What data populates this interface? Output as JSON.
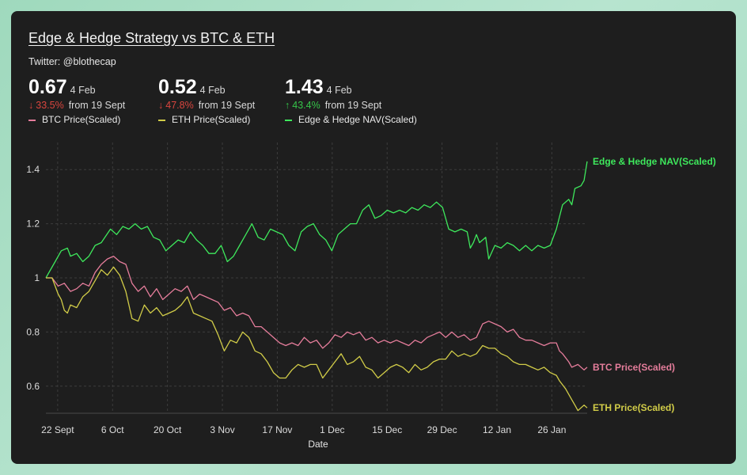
{
  "header": {
    "title": "Edge & Hedge Strategy vs BTC & ETH",
    "subtitle": "Twitter: @blothecap"
  },
  "stats": [
    {
      "value": "0.67",
      "date": "4 Feb",
      "direction": "down",
      "change": "33.5%",
      "from": "from 19 Sept",
      "legend": "BTC Price(Scaled)",
      "color": "#e57d9b"
    },
    {
      "value": "0.52",
      "date": "4 Feb",
      "direction": "down",
      "change": "47.8%",
      "from": "from 19 Sept",
      "legend": "ETH Price(Scaled)",
      "color": "#d1cc48"
    },
    {
      "value": "1.43",
      "date": "4 Feb",
      "direction": "up",
      "change": "43.4%",
      "from": "from 19 Sept",
      "legend": "Edge & Hedge NAV(Scaled)",
      "color": "#3ee85c"
    }
  ],
  "icons": {
    "down": "arrow-down-icon",
    "up": "arrow-up-icon"
  },
  "chart_data": {
    "type": "line",
    "title": "Edge & Hedge Strategy vs BTC & ETH",
    "xlabel": "Date",
    "ylabel": "",
    "x_ticks": [
      "22 Sept",
      "6 Oct",
      "20 Oct",
      "3 Nov",
      "17 Nov",
      "1 Dec",
      "15 Dec",
      "29 Dec",
      "12 Jan",
      "26 Jan"
    ],
    "x_tick_day_index": [
      3,
      17,
      31,
      45,
      59,
      73,
      87,
      101,
      115,
      129
    ],
    "x_range": [
      0,
      138
    ],
    "y_ticks": [
      0.6,
      0.8,
      1,
      1.2,
      1.4
    ],
    "ylim": [
      0.5,
      1.5
    ],
    "grid": true,
    "x_start_date": "19 Sept",
    "x_end_date": "4 Feb",
    "series": [
      {
        "name": "Edge & Hedge NAV(Scaled)",
        "color": "#3ee85c",
        "end_label": "Edge & Hedge NAV(Scaled)",
        "anchors": [
          [
            0,
            1.0
          ],
          [
            3,
            1.06
          ],
          [
            5,
            1.1
          ],
          [
            7,
            1.11
          ],
          [
            8,
            1.08
          ],
          [
            10,
            1.09
          ],
          [
            12,
            1.06
          ],
          [
            14,
            1.08
          ],
          [
            16,
            1.12
          ],
          [
            18,
            1.13
          ],
          [
            21,
            1.18
          ],
          [
            23,
            1.16
          ],
          [
            25,
            1.19
          ],
          [
            27,
            1.18
          ],
          [
            29,
            1.2
          ],
          [
            31,
            1.18
          ],
          [
            33,
            1.19
          ],
          [
            35,
            1.15
          ],
          [
            37,
            1.14
          ],
          [
            39,
            1.1
          ],
          [
            41,
            1.12
          ],
          [
            43,
            1.14
          ],
          [
            45,
            1.13
          ],
          [
            47,
            1.17
          ],
          [
            49,
            1.14
          ],
          [
            51,
            1.12
          ],
          [
            53,
            1.09
          ],
          [
            55,
            1.09
          ],
          [
            57,
            1.12
          ],
          [
            59,
            1.06
          ],
          [
            61,
            1.08
          ],
          [
            63,
            1.12
          ],
          [
            65,
            1.16
          ],
          [
            67,
            1.2
          ],
          [
            69,
            1.15
          ],
          [
            71,
            1.14
          ],
          [
            73,
            1.18
          ],
          [
            75,
            1.17
          ],
          [
            77,
            1.16
          ],
          [
            79,
            1.12
          ],
          [
            81,
            1.1
          ],
          [
            83,
            1.17
          ],
          [
            85,
            1.19
          ],
          [
            87,
            1.2
          ],
          [
            89,
            1.16
          ],
          [
            91,
            1.14
          ],
          [
            93,
            1.1
          ],
          [
            95,
            1.16
          ],
          [
            97,
            1.18
          ],
          [
            99,
            1.2
          ],
          [
            101,
            1.2
          ],
          [
            103,
            1.25
          ],
          [
            105,
            1.27
          ],
          [
            107,
            1.22
          ],
          [
            109,
            1.23
          ],
          [
            111,
            1.25
          ],
          [
            113,
            1.24
          ],
          [
            115,
            1.25
          ],
          [
            117,
            1.24
          ],
          [
            119,
            1.26
          ],
          [
            121,
            1.25
          ],
          [
            123,
            1.27
          ],
          [
            125,
            1.26
          ],
          [
            127,
            1.28
          ],
          [
            129,
            1.26
          ],
          [
            131,
            1.18
          ],
          [
            133,
            1.17
          ],
          [
            135,
            1.18
          ],
          [
            137,
            1.17
          ],
          [
            138,
            1.11
          ],
          [
            139,
            1.13
          ],
          [
            140,
            1.16
          ],
          [
            141,
            1.13
          ],
          [
            143,
            1.15
          ],
          [
            144,
            1.07
          ],
          [
            146,
            1.12
          ],
          [
            148,
            1.11
          ],
          [
            150,
            1.13
          ],
          [
            152,
            1.12
          ],
          [
            154,
            1.1
          ],
          [
            156,
            1.12
          ],
          [
            158,
            1.1
          ],
          [
            160,
            1.12
          ],
          [
            162,
            1.11
          ],
          [
            164,
            1.12
          ],
          [
            166,
            1.18
          ],
          [
            168,
            1.27
          ],
          [
            170,
            1.29
          ],
          [
            171,
            1.27
          ],
          [
            172,
            1.33
          ],
          [
            174,
            1.34
          ],
          [
            175,
            1.36
          ],
          [
            176,
            1.43
          ]
        ]
      },
      {
        "name": "BTC Price(Scaled)",
        "color": "#e57d9b",
        "end_label": "BTC Price(Scaled)",
        "anchors": [
          [
            0,
            1.0
          ],
          [
            2,
            1.0
          ],
          [
            4,
            0.97
          ],
          [
            6,
            0.98
          ],
          [
            8,
            0.95
          ],
          [
            10,
            0.96
          ],
          [
            12,
            0.98
          ],
          [
            14,
            0.97
          ],
          [
            16,
            1.02
          ],
          [
            18,
            1.05
          ],
          [
            20,
            1.07
          ],
          [
            22,
            1.08
          ],
          [
            24,
            1.06
          ],
          [
            26,
            1.05
          ],
          [
            28,
            0.98
          ],
          [
            30,
            0.95
          ],
          [
            32,
            0.97
          ],
          [
            34,
            0.93
          ],
          [
            36,
            0.96
          ],
          [
            38,
            0.92
          ],
          [
            40,
            0.94
          ],
          [
            42,
            0.96
          ],
          [
            44,
            0.95
          ],
          [
            46,
            0.97
          ],
          [
            48,
            0.92
          ],
          [
            50,
            0.94
          ],
          [
            52,
            0.93
          ],
          [
            54,
            0.92
          ],
          [
            56,
            0.91
          ],
          [
            58,
            0.88
          ],
          [
            60,
            0.89
          ],
          [
            62,
            0.86
          ],
          [
            64,
            0.87
          ],
          [
            66,
            0.86
          ],
          [
            68,
            0.82
          ],
          [
            70,
            0.82
          ],
          [
            72,
            0.8
          ],
          [
            74,
            0.78
          ],
          [
            76,
            0.76
          ],
          [
            78,
            0.75
          ],
          [
            80,
            0.76
          ],
          [
            82,
            0.75
          ],
          [
            84,
            0.78
          ],
          [
            86,
            0.76
          ],
          [
            88,
            0.77
          ],
          [
            90,
            0.74
          ],
          [
            92,
            0.76
          ],
          [
            94,
            0.79
          ],
          [
            96,
            0.78
          ],
          [
            98,
            0.8
          ],
          [
            100,
            0.79
          ],
          [
            102,
            0.8
          ],
          [
            104,
            0.77
          ],
          [
            106,
            0.78
          ],
          [
            108,
            0.76
          ],
          [
            110,
            0.77
          ],
          [
            112,
            0.76
          ],
          [
            114,
            0.77
          ],
          [
            116,
            0.76
          ],
          [
            118,
            0.75
          ],
          [
            120,
            0.77
          ],
          [
            122,
            0.76
          ],
          [
            124,
            0.78
          ],
          [
            126,
            0.79
          ],
          [
            128,
            0.8
          ],
          [
            130,
            0.78
          ],
          [
            132,
            0.8
          ],
          [
            134,
            0.78
          ],
          [
            136,
            0.79
          ],
          [
            138,
            0.77
          ],
          [
            140,
            0.78
          ],
          [
            142,
            0.83
          ],
          [
            144,
            0.84
          ],
          [
            146,
            0.83
          ],
          [
            148,
            0.82
          ],
          [
            150,
            0.8
          ],
          [
            152,
            0.81
          ],
          [
            154,
            0.78
          ],
          [
            156,
            0.77
          ],
          [
            158,
            0.77
          ],
          [
            160,
            0.76
          ],
          [
            162,
            0.75
          ],
          [
            164,
            0.76
          ],
          [
            166,
            0.76
          ],
          [
            167,
            0.73
          ],
          [
            168,
            0.72
          ],
          [
            170,
            0.69
          ],
          [
            171,
            0.67
          ],
          [
            173,
            0.68
          ],
          [
            175,
            0.66
          ],
          [
            176,
            0.67
          ]
        ]
      },
      {
        "name": "ETH Price(Scaled)",
        "color": "#d1cc48",
        "end_label": "ETH Price(Scaled)",
        "anchors": [
          [
            0,
            1.0
          ],
          [
            2,
            1.0
          ],
          [
            4,
            0.94
          ],
          [
            5,
            0.92
          ],
          [
            6,
            0.88
          ],
          [
            7,
            0.87
          ],
          [
            8,
            0.9
          ],
          [
            10,
            0.89
          ],
          [
            12,
            0.93
          ],
          [
            14,
            0.95
          ],
          [
            16,
            0.99
          ],
          [
            18,
            1.03
          ],
          [
            20,
            1.01
          ],
          [
            22,
            1.04
          ],
          [
            24,
            1.01
          ],
          [
            26,
            0.95
          ],
          [
            28,
            0.85
          ],
          [
            30,
            0.84
          ],
          [
            32,
            0.9
          ],
          [
            34,
            0.87
          ],
          [
            36,
            0.89
          ],
          [
            38,
            0.86
          ],
          [
            40,
            0.87
          ],
          [
            42,
            0.88
          ],
          [
            44,
            0.9
          ],
          [
            46,
            0.93
          ],
          [
            48,
            0.87
          ],
          [
            50,
            0.86
          ],
          [
            52,
            0.85
          ],
          [
            54,
            0.84
          ],
          [
            56,
            0.79
          ],
          [
            58,
            0.73
          ],
          [
            60,
            0.77
          ],
          [
            62,
            0.76
          ],
          [
            64,
            0.8
          ],
          [
            66,
            0.78
          ],
          [
            68,
            0.73
          ],
          [
            70,
            0.72
          ],
          [
            72,
            0.69
          ],
          [
            74,
            0.65
          ],
          [
            76,
            0.63
          ],
          [
            78,
            0.63
          ],
          [
            80,
            0.66
          ],
          [
            82,
            0.68
          ],
          [
            84,
            0.67
          ],
          [
            86,
            0.68
          ],
          [
            88,
            0.68
          ],
          [
            90,
            0.63
          ],
          [
            92,
            0.66
          ],
          [
            94,
            0.69
          ],
          [
            96,
            0.72
          ],
          [
            98,
            0.68
          ],
          [
            100,
            0.69
          ],
          [
            102,
            0.71
          ],
          [
            104,
            0.67
          ],
          [
            106,
            0.66
          ],
          [
            108,
            0.63
          ],
          [
            110,
            0.65
          ],
          [
            112,
            0.67
          ],
          [
            114,
            0.68
          ],
          [
            116,
            0.67
          ],
          [
            118,
            0.65
          ],
          [
            120,
            0.68
          ],
          [
            122,
            0.66
          ],
          [
            124,
            0.67
          ],
          [
            126,
            0.69
          ],
          [
            128,
            0.7
          ],
          [
            130,
            0.7
          ],
          [
            132,
            0.73
          ],
          [
            134,
            0.71
          ],
          [
            136,
            0.72
          ],
          [
            138,
            0.71
          ],
          [
            140,
            0.72
          ],
          [
            142,
            0.75
          ],
          [
            144,
            0.74
          ],
          [
            146,
            0.74
          ],
          [
            148,
            0.72
          ],
          [
            150,
            0.71
          ],
          [
            152,
            0.69
          ],
          [
            154,
            0.68
          ],
          [
            156,
            0.68
          ],
          [
            158,
            0.67
          ],
          [
            160,
            0.66
          ],
          [
            162,
            0.67
          ],
          [
            164,
            0.65
          ],
          [
            166,
            0.64
          ],
          [
            167,
            0.62
          ],
          [
            169,
            0.59
          ],
          [
            171,
            0.55
          ],
          [
            172,
            0.53
          ],
          [
            173,
            0.51
          ],
          [
            175,
            0.53
          ],
          [
            176,
            0.52
          ]
        ]
      }
    ]
  }
}
